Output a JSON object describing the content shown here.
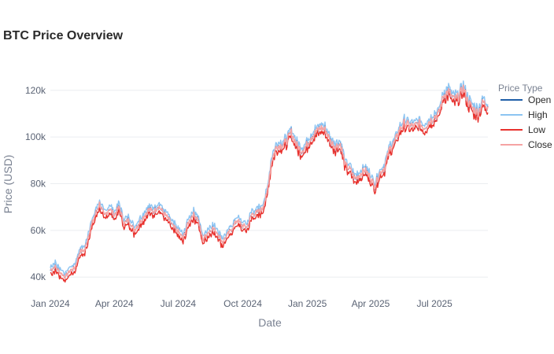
{
  "chart_data": {
    "type": "line",
    "title": "BTC Price Overview",
    "xlabel": "Date",
    "ylabel": "Price (USD)",
    "x_range": [
      "2024-01-01",
      "2025-09-15"
    ],
    "ylim": [
      34000,
      126000
    ],
    "x_ticks": [
      {
        "date": "2024-01-01",
        "label": "Jan 2024"
      },
      {
        "date": "2024-04-01",
        "label": "Apr 2024"
      },
      {
        "date": "2024-07-01",
        "label": "Jul 2024"
      },
      {
        "date": "2024-10-01",
        "label": "Oct 2024"
      },
      {
        "date": "2025-01-01",
        "label": "Jan 2025"
      },
      {
        "date": "2025-04-01",
        "label": "Apr 2025"
      },
      {
        "date": "2025-07-01",
        "label": "Jul 2025"
      }
    ],
    "y_ticks": [
      {
        "value": 40000,
        "label": "40k"
      },
      {
        "value": 60000,
        "label": "60k"
      },
      {
        "value": 80000,
        "label": "80k"
      },
      {
        "value": 100000,
        "label": "100k"
      },
      {
        "value": 120000,
        "label": "120k"
      }
    ],
    "grid": true,
    "legend": {
      "title": "Price Type",
      "position": "right",
      "entries": [
        {
          "name": "Open",
          "color": "#1f5fa8"
        },
        {
          "name": "High",
          "color": "#8cc4f2"
        },
        {
          "name": "Low",
          "color": "#e8322e"
        },
        {
          "name": "Close",
          "color": "#f5a3a3"
        }
      ]
    },
    "close_series": {
      "x": [
        "2024-01-01",
        "2024-01-08",
        "2024-01-15",
        "2024-01-22",
        "2024-01-29",
        "2024-02-05",
        "2024-02-12",
        "2024-02-19",
        "2024-02-26",
        "2024-03-04",
        "2024-03-11",
        "2024-03-18",
        "2024-03-25",
        "2024-04-01",
        "2024-04-08",
        "2024-04-15",
        "2024-04-22",
        "2024-04-29",
        "2024-05-06",
        "2024-05-13",
        "2024-05-20",
        "2024-05-27",
        "2024-06-03",
        "2024-06-10",
        "2024-06-17",
        "2024-06-24",
        "2024-07-01",
        "2024-07-08",
        "2024-07-15",
        "2024-07-22",
        "2024-07-29",
        "2024-08-05",
        "2024-08-12",
        "2024-08-19",
        "2024-08-26",
        "2024-09-02",
        "2024-09-09",
        "2024-09-16",
        "2024-09-23",
        "2024-09-30",
        "2024-10-07",
        "2024-10-14",
        "2024-10-21",
        "2024-10-28",
        "2024-11-04",
        "2024-11-11",
        "2024-11-18",
        "2024-11-25",
        "2024-12-02",
        "2024-12-09",
        "2024-12-16",
        "2024-12-23",
        "2024-12-30",
        "2025-01-06",
        "2025-01-13",
        "2025-01-20",
        "2025-01-27",
        "2025-02-03",
        "2025-02-10",
        "2025-02-17",
        "2025-02-24",
        "2025-03-03",
        "2025-03-10",
        "2025-03-17",
        "2025-03-24",
        "2025-03-31",
        "2025-04-07",
        "2025-04-14",
        "2025-04-21",
        "2025-04-28",
        "2025-05-05",
        "2025-05-12",
        "2025-05-19",
        "2025-05-26",
        "2025-06-02",
        "2025-06-09",
        "2025-06-16",
        "2025-06-23",
        "2025-06-30",
        "2025-07-07",
        "2025-07-14",
        "2025-07-21",
        "2025-07-28",
        "2025-08-04",
        "2025-08-11",
        "2025-08-18",
        "2025-08-25",
        "2025-09-01",
        "2025-09-08",
        "2025-09-15"
      ],
      "values": [
        43000,
        44500,
        42000,
        40000,
        42800,
        44000,
        51000,
        51500,
        60000,
        66000,
        71500,
        66000,
        69500,
        66500,
        70000,
        63000,
        64500,
        60000,
        63000,
        66000,
        69000,
        68000,
        70500,
        67500,
        65000,
        61500,
        59500,
        56500,
        63000,
        67000,
        65000,
        56000,
        59000,
        61000,
        59000,
        55000,
        58000,
        61000,
        64500,
        62000,
        61500,
        67000,
        67500,
        69000,
        75000,
        90000,
        96000,
        96500,
        98000,
        102000,
        97000,
        94000,
        96000,
        100000,
        102000,
        104000,
        103000,
        98000,
        96000,
        97000,
        88000,
        86000,
        82000,
        84000,
        86000,
        83000,
        79000,
        84500,
        87000,
        95000,
        97500,
        103000,
        106000,
        105000,
        104500,
        106000,
        104000,
        106500,
        108500,
        110000,
        118000,
        119500,
        116000,
        117000,
        121000,
        115000,
        112000,
        110500,
        115000,
        113000
      ]
    },
    "approx": {
      "high_over_close": 1500,
      "low_under_close": 1700,
      "open_offset": 300
    }
  }
}
